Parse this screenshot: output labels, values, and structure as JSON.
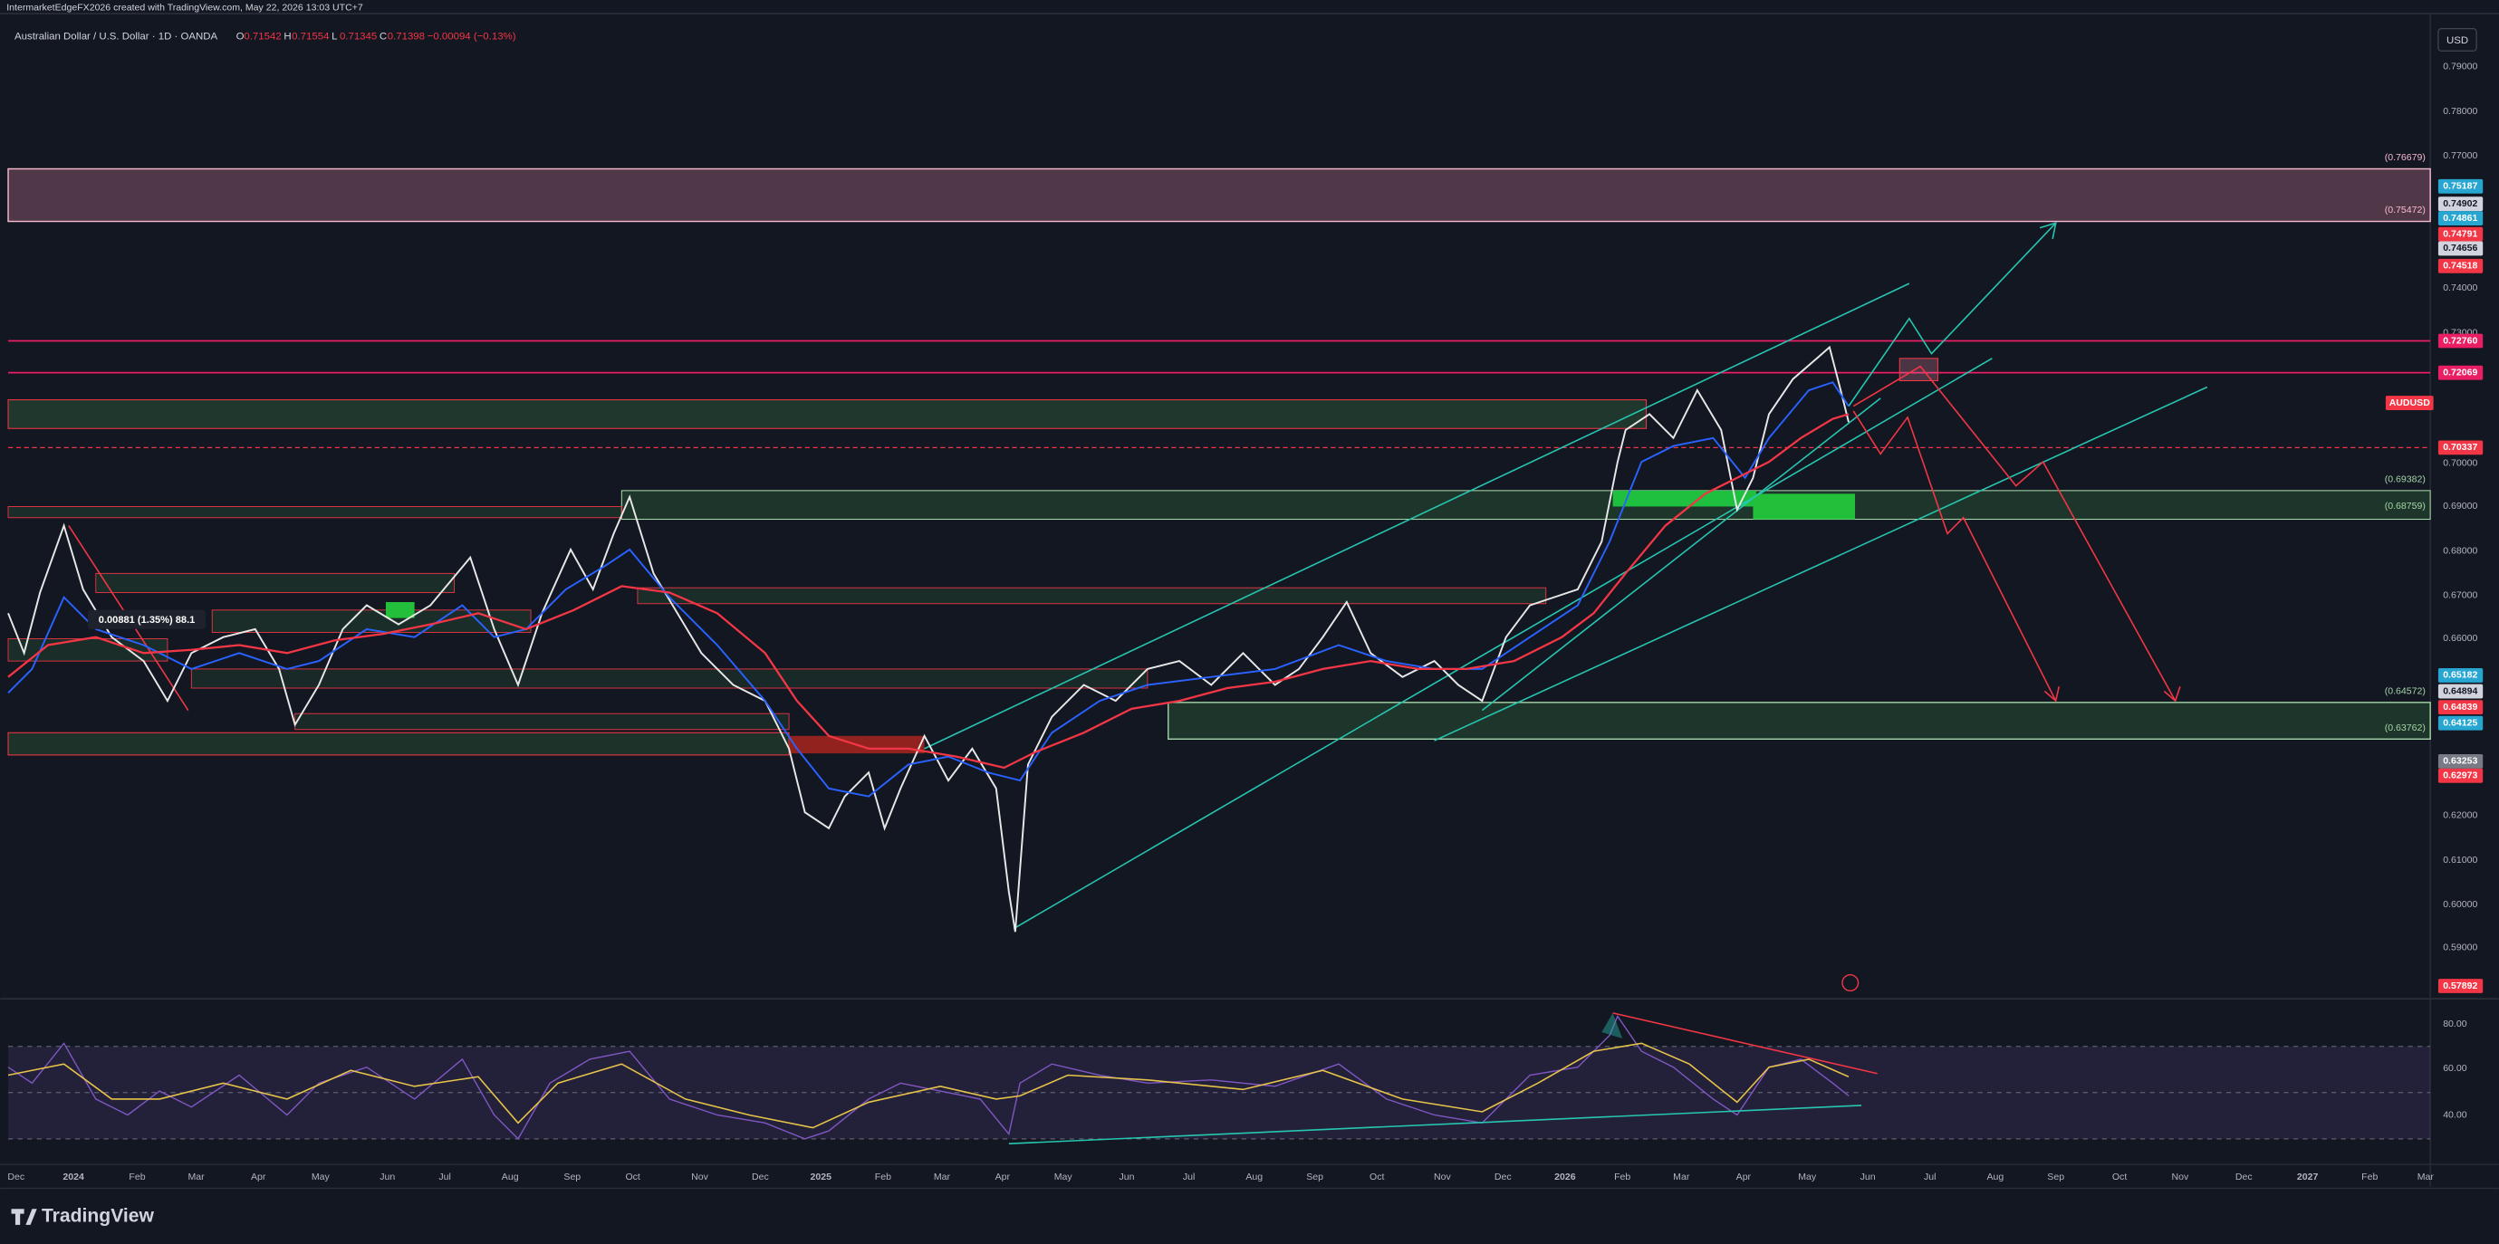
{
  "header": {
    "credit": "IntermarketEdgeFX2026 created with TradingView.com, May 22, 2026 13:03 UTC+7",
    "symbol": "Australian Dollar / U.S. Dollar · 1D · OANDA",
    "ohlc": [
      "O",
      "0.71542",
      "H",
      "0.71554",
      "L",
      "0.71345",
      "C",
      "0.71398",
      "−0.00094 (−0.13%)"
    ],
    "currency": "USD"
  },
  "price_axis": {
    "labels": [
      "0.79000",
      "0.78000",
      "0.77000",
      "0.75187",
      "0.74902",
      "0.74861",
      "0.74791",
      "0.74656",
      "0.74518",
      "0.74000",
      "0.73000",
      "0.72760",
      "0.72069",
      "AUDUSD",
      "0.70337",
      "0.70000",
      "0.69000",
      "0.68000",
      "0.67000",
      "0.66000",
      "0.65182",
      "0.64894",
      "0.64839",
      "0.64125",
      "0.63253",
      "0.62973",
      "0.62000",
      "0.61000",
      "0.60000",
      "0.59000",
      "0.57892"
    ]
  },
  "level_labels": [
    "(0.76679)",
    "(0.75472)",
    "(0.69382)",
    "(0.68759)",
    "(0.64572)",
    "(0.63762)"
  ],
  "measure_label": "0.00881 (1.35%) 88.1",
  "rsi_axis": {
    "labels": [
      "80.00",
      "60.00",
      "40.00"
    ]
  },
  "time_axis": {
    "labels": [
      "Dec",
      "2024",
      "Feb",
      "Mar",
      "Apr",
      "May",
      "Jun",
      "Jul",
      "Aug",
      "Sep",
      "Oct",
      "Nov",
      "Dec",
      "2025",
      "Feb",
      "Mar",
      "Apr",
      "May",
      "Jun",
      "Jul",
      "Aug",
      "Sep",
      "Oct",
      "Nov",
      "Dec",
      "2026",
      "Feb",
      "Mar",
      "Apr",
      "May",
      "Jun",
      "Jul",
      "Aug",
      "Sep",
      "Oct",
      "Nov",
      "Dec",
      "2027",
      "Feb",
      "Mar"
    ]
  },
  "footer": {
    "logo": "TradingView"
  }
}
